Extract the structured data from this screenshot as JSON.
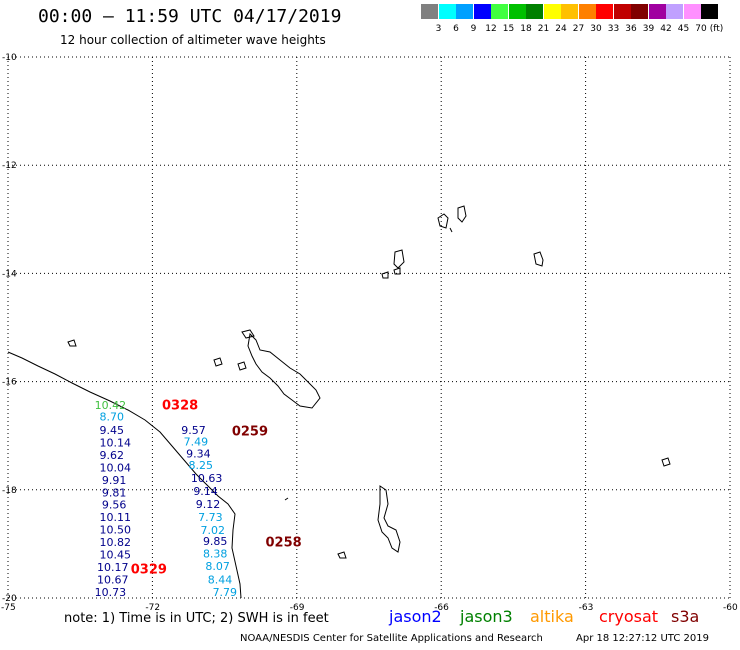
{
  "header": {
    "title": "00:00 — 11:59 UTC 04/17/2019",
    "subtitle": "12 hour collection of altimeter wave heights"
  },
  "legend": {
    "unit": "(ft)",
    "items": [
      {
        "label": "3",
        "color": "#808080"
      },
      {
        "label": "6",
        "color": "#00ffff"
      },
      {
        "label": "9",
        "color": "#00a0ff"
      },
      {
        "label": "12",
        "color": "#0000ff"
      },
      {
        "label": "15",
        "color": "#40ff40"
      },
      {
        "label": "18",
        "color": "#00c000"
      },
      {
        "label": "21",
        "color": "#008000"
      },
      {
        "label": "24",
        "color": "#ffff00"
      },
      {
        "label": "27",
        "color": "#ffc000"
      },
      {
        "label": "30",
        "color": "#ff8000"
      },
      {
        "label": "33",
        "color": "#ff0000"
      },
      {
        "label": "36",
        "color": "#c00000"
      },
      {
        "label": "39",
        "color": "#800000"
      },
      {
        "label": "42",
        "color": "#a000a0"
      },
      {
        "label": "45",
        "color": "#c0a0ff"
      },
      {
        "label": "70",
        "color": "#ff90ff"
      },
      {
        "label": "",
        "color": "#000000"
      }
    ]
  },
  "axes": {
    "lat_ticks": [
      {
        "label": "-10",
        "value": -10
      },
      {
        "label": "-12",
        "value": -12
      },
      {
        "label": "-14",
        "value": -14
      },
      {
        "label": "-16",
        "value": -16
      },
      {
        "label": "-18",
        "value": -18
      },
      {
        "label": "-20",
        "value": -20
      }
    ],
    "lon_ticks": [
      {
        "label": "-75",
        "value": -75
      },
      {
        "label": "-72",
        "value": -72
      },
      {
        "label": "-69",
        "value": -69
      },
      {
        "label": "-66",
        "value": -66
      },
      {
        "label": "-63",
        "value": -63
      },
      {
        "label": "-60",
        "value": -60
      }
    ],
    "lat_range": [
      -20,
      -10
    ],
    "lon_range": [
      -75,
      -60
    ],
    "grid": "dotted"
  },
  "observations": [
    {
      "v": "10.42",
      "lon": -73.2,
      "lat": -16.51,
      "color": "#40c040"
    },
    {
      "v": "8.70",
      "lon": -73.1,
      "lat": -16.72,
      "color": "#00a0e0"
    },
    {
      "v": "9.45",
      "lon": -73.1,
      "lat": -16.97,
      "color": "#00008b"
    },
    {
      "v": "10.14",
      "lon": -73.1,
      "lat": -17.2,
      "color": "#00008b"
    },
    {
      "v": "9.62",
      "lon": -73.1,
      "lat": -17.43,
      "color": "#00008b"
    },
    {
      "v": "10.04",
      "lon": -73.1,
      "lat": -17.66,
      "color": "#00008b"
    },
    {
      "v": "9.91",
      "lon": -73.05,
      "lat": -17.89,
      "color": "#00008b"
    },
    {
      "v": "9.81",
      "lon": -73.05,
      "lat": -18.12,
      "color": "#00008b"
    },
    {
      "v": "9.56",
      "lon": -73.05,
      "lat": -18.35,
      "color": "#00008b"
    },
    {
      "v": "10.11",
      "lon": -73.1,
      "lat": -18.58,
      "color": "#00008b"
    },
    {
      "v": "10.50",
      "lon": -73.1,
      "lat": -18.81,
      "color": "#00008b"
    },
    {
      "v": "10.82",
      "lon": -73.1,
      "lat": -19.04,
      "color": "#00008b"
    },
    {
      "v": "10.45",
      "lon": -73.1,
      "lat": -19.27,
      "color": "#00008b"
    },
    {
      "v": "10.17",
      "lon": -73.15,
      "lat": -19.5,
      "color": "#00008b"
    },
    {
      "v": "10.67",
      "lon": -73.15,
      "lat": -19.73,
      "color": "#00008b"
    },
    {
      "v": "10.73",
      "lon": -73.2,
      "lat": -19.96,
      "color": "#00008b"
    },
    {
      "v": "9.57",
      "lon": -71.4,
      "lat": -16.97,
      "color": "#00008b"
    },
    {
      "v": "7.49",
      "lon": -71.35,
      "lat": -17.18,
      "color": "#00a0e0"
    },
    {
      "v": "9.34",
      "lon": -71.3,
      "lat": -17.4,
      "color": "#00008b"
    },
    {
      "v": "8.25",
      "lon": -71.25,
      "lat": -17.62,
      "color": "#00a0e0"
    },
    {
      "v": "10.63",
      "lon": -71.2,
      "lat": -17.86,
      "color": "#00008b"
    },
    {
      "v": "9.14",
      "lon": -71.15,
      "lat": -18.1,
      "color": "#00008b"
    },
    {
      "v": "9.12",
      "lon": -71.1,
      "lat": -18.34,
      "color": "#00008b"
    },
    {
      "v": "7.73",
      "lon": -71.05,
      "lat": -18.58,
      "color": "#00a0e0"
    },
    {
      "v": "7.02",
      "lon": -71.0,
      "lat": -18.82,
      "color": "#00a0e0"
    },
    {
      "v": "9.85",
      "lon": -70.95,
      "lat": -19.02,
      "color": "#00008b"
    },
    {
      "v": "8.38",
      "lon": -70.95,
      "lat": -19.25,
      "color": "#00a0e0"
    },
    {
      "v": "8.07",
      "lon": -70.9,
      "lat": -19.48,
      "color": "#00a0e0"
    },
    {
      "v": "8.44",
      "lon": -70.85,
      "lat": -19.73,
      "color": "#00a0e0"
    },
    {
      "v": "7.79",
      "lon": -70.75,
      "lat": -19.96,
      "color": "#00a0e0"
    }
  ],
  "time_labels": [
    {
      "t": "0328",
      "lon": -71.8,
      "lat": -16.52,
      "color": "#ff0000"
    },
    {
      "t": "0259",
      "lon": -70.35,
      "lat": -17.0,
      "color": "#800000"
    },
    {
      "t": "0258",
      "lon": -69.65,
      "lat": -19.05,
      "color": "#800000"
    },
    {
      "t": "0329",
      "lon": -72.45,
      "lat": -19.55,
      "color": "#ff0000"
    }
  ],
  "footer": {
    "note": "note: 1) Time is in UTC; 2) SWH is in feet",
    "satellites": [
      {
        "name": "jason2",
        "color": "#0000ff"
      },
      {
        "name": "jason3",
        "color": "#008000"
      },
      {
        "name": "altika",
        "color": "#ff9900"
      },
      {
        "name": "cryosat",
        "color": "#ff0000"
      },
      {
        "name": "s3a",
        "color": "#800000"
      }
    ],
    "credit": "NOAA/NESDIS Center for Satellite Applications and Research",
    "timestamp": "Apr 18 12:27:12 UTC 2019"
  }
}
